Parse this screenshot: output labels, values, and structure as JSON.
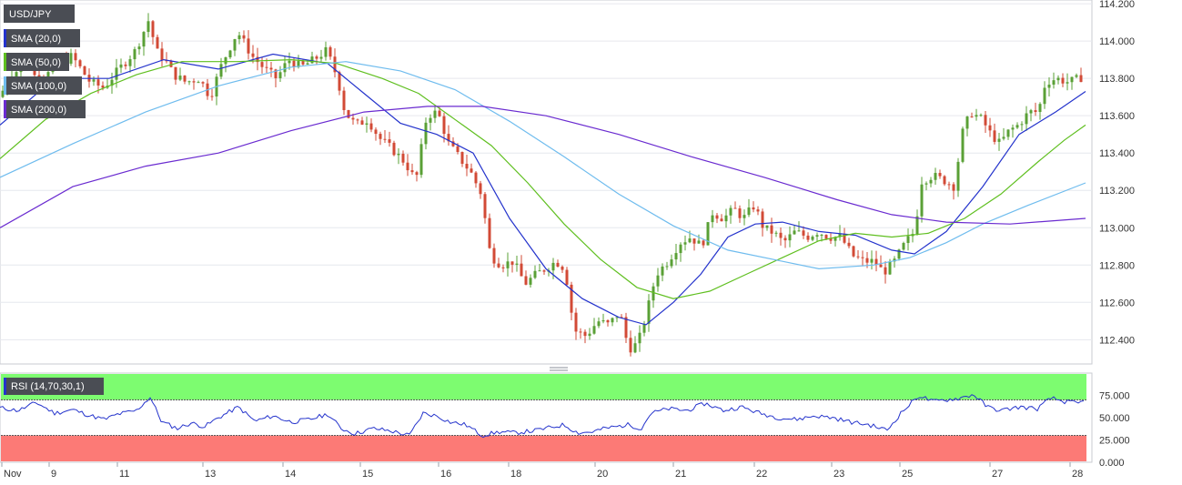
{
  "chart_data": {
    "type": "candlestick",
    "symbol": "USD/JPY",
    "price_axis": {
      "ticks": [
        "114.200",
        "114.000",
        "113.800",
        "113.600",
        "113.400",
        "113.200",
        "113.000",
        "112.800",
        "112.600",
        "112.400"
      ],
      "ylim": [
        112.27,
        114.22
      ]
    },
    "rsi_axis": {
      "ticks": [
        "75.000",
        "50.000",
        "25.000",
        "0.000"
      ],
      "ylim": [
        0,
        100
      ],
      "overbought": 70,
      "oversold": 30
    },
    "x_labels": [
      "Nov",
      "9",
      "11",
      "13",
      "14",
      "15",
      "16",
      "18",
      "20",
      "21",
      "22",
      "23",
      "25",
      "27",
      "28"
    ],
    "indicators": [
      {
        "label": "SMA (20,0)",
        "color": "#2433cc"
      },
      {
        "label": "SMA (50,0)",
        "color": "#5fbf1f"
      },
      {
        "label": "SMA (100,0)",
        "color": "#6fbcee"
      },
      {
        "label": "SMA (200,0)",
        "color": "#6a2bd0"
      }
    ],
    "rsi_label": "RSI (14,70,30,1)",
    "colors": {
      "up": "#5aa036",
      "down": "#d24a36",
      "rsi": "#2433cc",
      "overbought_zone": "#7dfc70",
      "oversold_zone": "#fc7a76"
    },
    "price_path": [
      [
        0,
        113.7
      ],
      [
        14,
        113.82
      ],
      [
        30,
        113.88
      ],
      [
        48,
        113.8
      ],
      [
        62,
        113.86
      ],
      [
        80,
        113.92
      ],
      [
        100,
        113.78
      ],
      [
        115,
        113.75
      ],
      [
        130,
        113.84
      ],
      [
        150,
        113.95
      ],
      [
        165,
        114.12
      ],
      [
        172,
        113.95
      ],
      [
        182,
        113.9
      ],
      [
        192,
        113.82
      ],
      [
        205,
        113.78
      ],
      [
        220,
        113.8
      ],
      [
        232,
        113.7
      ],
      [
        245,
        113.88
      ],
      [
        262,
        114.05
      ],
      [
        278,
        113.92
      ],
      [
        292,
        113.85
      ],
      [
        305,
        113.8
      ],
      [
        318,
        113.9
      ],
      [
        332,
        113.86
      ],
      [
        346,
        113.9
      ],
      [
        360,
        113.95
      ],
      [
        372,
        113.8
      ],
      [
        380,
        113.62
      ],
      [
        392,
        113.55
      ],
      [
        405,
        113.58
      ],
      [
        418,
        113.48
      ],
      [
        432,
        113.42
      ],
      [
        446,
        113.35
      ],
      [
        458,
        113.25
      ],
      [
        470,
        113.6
      ],
      [
        482,
        113.62
      ],
      [
        494,
        113.45
      ],
      [
        505,
        113.38
      ],
      [
        518,
        113.3
      ],
      [
        530,
        113.18
      ],
      [
        540,
        112.85
      ],
      [
        552,
        112.8
      ],
      [
        565,
        112.82
      ],
      [
        578,
        112.7
      ],
      [
        590,
        112.75
      ],
      [
        600,
        112.78
      ],
      [
        612,
        112.82
      ],
      [
        622,
        112.78
      ],
      [
        632,
        112.45
      ],
      [
        645,
        112.42
      ],
      [
        658,
        112.5
      ],
      [
        670,
        112.48
      ],
      [
        682,
        112.55
      ],
      [
        692,
        112.35
      ],
      [
        702,
        112.38
      ],
      [
        712,
        112.55
      ],
      [
        722,
        112.75
      ],
      [
        735,
        112.82
      ],
      [
        748,
        112.92
      ],
      [
        760,
        112.95
      ],
      [
        772,
        112.9
      ],
      [
        784,
        113.08
      ],
      [
        796,
        113.05
      ],
      [
        808,
        113.1
      ],
      [
        818,
        113.05
      ],
      [
        830,
        113.12
      ],
      [
        840,
        113.0
      ],
      [
        852,
        112.97
      ],
      [
        862,
        112.92
      ],
      [
        875,
        112.98
      ],
      [
        888,
        112.95
      ],
      [
        900,
        112.98
      ],
      [
        912,
        112.95
      ],
      [
        925,
        112.95
      ],
      [
        938,
        112.85
      ],
      [
        950,
        112.82
      ],
      [
        962,
        112.82
      ],
      [
        972,
        112.76
      ],
      [
        984,
        112.82
      ],
      [
        996,
        112.92
      ],
      [
        1006,
        112.98
      ],
      [
        1014,
        113.25
      ],
      [
        1026,
        113.28
      ],
      [
        1040,
        113.25
      ],
      [
        1050,
        113.22
      ],
      [
        1058,
        113.5
      ],
      [
        1068,
        113.62
      ],
      [
        1080,
        113.58
      ],
      [
        1090,
        113.5
      ],
      [
        1100,
        113.45
      ],
      [
        1110,
        113.52
      ],
      [
        1120,
        113.55
      ],
      [
        1132,
        113.62
      ],
      [
        1142,
        113.62
      ],
      [
        1150,
        113.78
      ],
      [
        1162,
        113.8
      ],
      [
        1175,
        113.78
      ],
      [
        1188,
        113.8
      ],
      [
        1192,
        113.82
      ]
    ],
    "sma20_path": [
      [
        0,
        113.55
      ],
      [
        60,
        113.8
      ],
      [
        120,
        113.8
      ],
      [
        180,
        113.9
      ],
      [
        240,
        113.85
      ],
      [
        300,
        113.93
      ],
      [
        360,
        113.88
      ],
      [
        400,
        113.72
      ],
      [
        440,
        113.56
      ],
      [
        480,
        113.5
      ],
      [
        520,
        113.4
      ],
      [
        560,
        113.05
      ],
      [
        600,
        112.78
      ],
      [
        640,
        112.62
      ],
      [
        680,
        112.52
      ],
      [
        710,
        112.48
      ],
      [
        740,
        112.6
      ],
      [
        770,
        112.75
      ],
      [
        800,
        112.95
      ],
      [
        830,
        113.02
      ],
      [
        860,
        113.03
      ],
      [
        900,
        112.98
      ],
      [
        940,
        112.96
      ],
      [
        980,
        112.88
      ],
      [
        1005,
        112.86
      ],
      [
        1040,
        112.98
      ],
      [
        1080,
        113.22
      ],
      [
        1120,
        113.5
      ],
      [
        1160,
        113.62
      ],
      [
        1193,
        113.73
      ]
    ],
    "sma50_path": [
      [
        0,
        113.37
      ],
      [
        50,
        113.58
      ],
      [
        100,
        113.72
      ],
      [
        150,
        113.82
      ],
      [
        200,
        113.89
      ],
      [
        260,
        113.89
      ],
      [
        320,
        113.9
      ],
      [
        370,
        113.88
      ],
      [
        420,
        113.8
      ],
      [
        460,
        113.72
      ],
      [
        500,
        113.58
      ],
      [
        540,
        113.44
      ],
      [
        580,
        113.24
      ],
      [
        620,
        113.02
      ],
      [
        660,
        112.83
      ],
      [
        700,
        112.68
      ],
      [
        740,
        112.62
      ],
      [
        780,
        112.66
      ],
      [
        820,
        112.75
      ],
      [
        860,
        112.84
      ],
      [
        900,
        112.93
      ],
      [
        940,
        112.97
      ],
      [
        980,
        112.95
      ],
      [
        1020,
        112.97
      ],
      [
        1060,
        113.05
      ],
      [
        1100,
        113.18
      ],
      [
        1140,
        113.35
      ],
      [
        1170,
        113.47
      ],
      [
        1193,
        113.55
      ]
    ],
    "sma100_path": [
      [
        0,
        113.27
      ],
      [
        80,
        113.45
      ],
      [
        160,
        113.62
      ],
      [
        240,
        113.76
      ],
      [
        320,
        113.86
      ],
      [
        380,
        113.89
      ],
      [
        440,
        113.84
      ],
      [
        500,
        113.74
      ],
      [
        560,
        113.57
      ],
      [
        620,
        113.38
      ],
      [
        680,
        113.18
      ],
      [
        740,
        113.01
      ],
      [
        800,
        112.88
      ],
      [
        860,
        112.82
      ],
      [
        900,
        112.78
      ],
      [
        960,
        112.8
      ],
      [
        1000,
        112.84
      ],
      [
        1040,
        112.92
      ],
      [
        1080,
        113.02
      ],
      [
        1130,
        113.12
      ],
      [
        1193,
        113.24
      ]
    ],
    "sma200_path": [
      [
        0,
        113.0
      ],
      [
        80,
        113.22
      ],
      [
        160,
        113.33
      ],
      [
        240,
        113.4
      ],
      [
        320,
        113.52
      ],
      [
        400,
        113.62
      ],
      [
        470,
        113.65
      ],
      [
        530,
        113.65
      ],
      [
        600,
        113.6
      ],
      [
        680,
        113.5
      ],
      [
        760,
        113.38
      ],
      [
        840,
        113.27
      ],
      [
        920,
        113.15
      ],
      [
        980,
        113.07
      ],
      [
        1040,
        113.03
      ],
      [
        1110,
        113.02
      ],
      [
        1193,
        113.05
      ]
    ],
    "rsi_path": [
      [
        0,
        61
      ],
      [
        20,
        58
      ],
      [
        40,
        67
      ],
      [
        60,
        55
      ],
      [
        80,
        59
      ],
      [
        100,
        52
      ],
      [
        115,
        48
      ],
      [
        130,
        54
      ],
      [
        150,
        58
      ],
      [
        165,
        73
      ],
      [
        178,
        45
      ],
      [
        195,
        38
      ],
      [
        210,
        44
      ],
      [
        225,
        40
      ],
      [
        240,
        50
      ],
      [
        262,
        62
      ],
      [
        280,
        46
      ],
      [
        300,
        52
      ],
      [
        320,
        45
      ],
      [
        340,
        48
      ],
      [
        360,
        54
      ],
      [
        375,
        38
      ],
      [
        390,
        32
      ],
      [
        410,
        38
      ],
      [
        430,
        35
      ],
      [
        450,
        30
      ],
      [
        465,
        55
      ],
      [
        480,
        52
      ],
      [
        495,
        45
      ],
      [
        512,
        42
      ],
      [
        530,
        30
      ],
      [
        548,
        34
      ],
      [
        565,
        33
      ],
      [
        585,
        35
      ],
      [
        600,
        38
      ],
      [
        620,
        42
      ],
      [
        635,
        33
      ],
      [
        650,
        34
      ],
      [
        665,
        38
      ],
      [
        690,
        42
      ],
      [
        705,
        38
      ],
      [
        715,
        55
      ],
      [
        735,
        60
      ],
      [
        755,
        58
      ],
      [
        775,
        66
      ],
      [
        795,
        58
      ],
      [
        815,
        62
      ],
      [
        835,
        55
      ],
      [
        855,
        50
      ],
      [
        875,
        48
      ],
      [
        895,
        52
      ],
      [
        915,
        50
      ],
      [
        935,
        45
      ],
      [
        955,
        42
      ],
      [
        975,
        36
      ],
      [
        990,
        55
      ],
      [
        1010,
        75
      ],
      [
        1025,
        68
      ],
      [
        1040,
        70
      ],
      [
        1055,
        72
      ],
      [
        1070,
        76
      ],
      [
        1085,
        62
      ],
      [
        1100,
        58
      ],
      [
        1120,
        62
      ],
      [
        1140,
        60
      ],
      [
        1155,
        72
      ],
      [
        1170,
        68
      ],
      [
        1185,
        66
      ],
      [
        1193,
        69
      ]
    ]
  }
}
